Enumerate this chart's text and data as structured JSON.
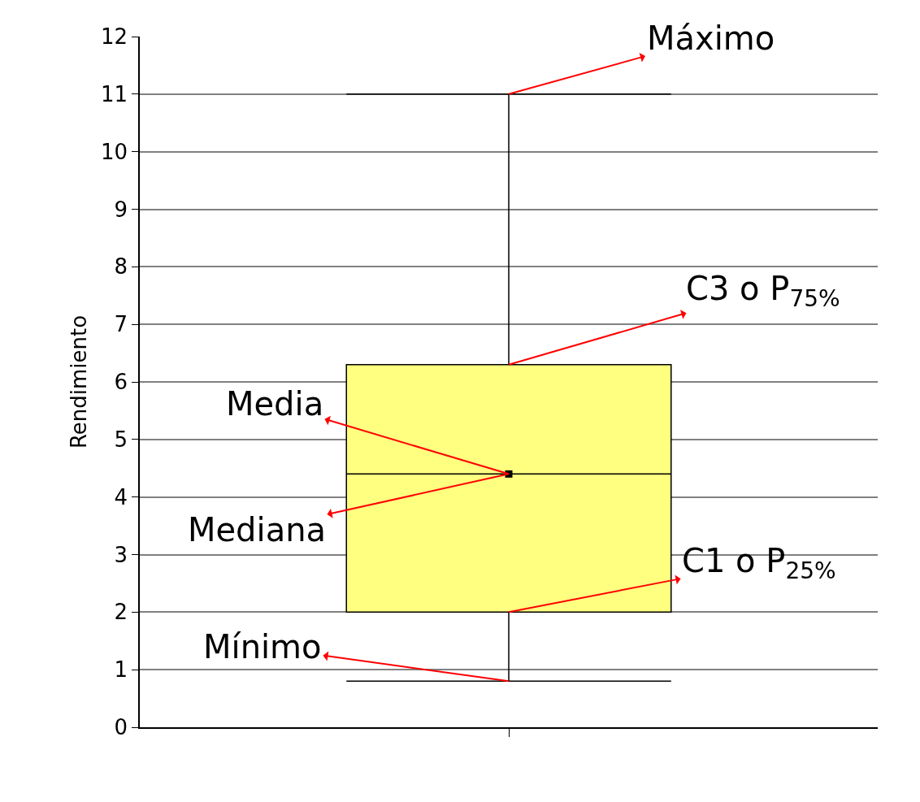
{
  "chart_data": {
    "type": "box",
    "ylabel": "Rendimiento",
    "categories": [
      null
    ],
    "series": [
      {
        "color": "#ffff80",
        "boxes": [
          {
            "low": 0.8,
            "q1": 2.0,
            "median": 4.4,
            "q3": 6.3,
            "high": 11,
            "mean": 4.4
          }
        ]
      }
    ],
    "ylim": [
      0,
      12
    ],
    "yticks": [
      0,
      1,
      2,
      3,
      4,
      5,
      6,
      7,
      8,
      9,
      10,
      11,
      12
    ],
    "grid": "y",
    "annotations": [
      "Máximo",
      "C3 o P$_{75%}$",
      "Media",
      "Mediana",
      "C1 o P$_{25%}$",
      "Mínimo"
    ]
  }
}
